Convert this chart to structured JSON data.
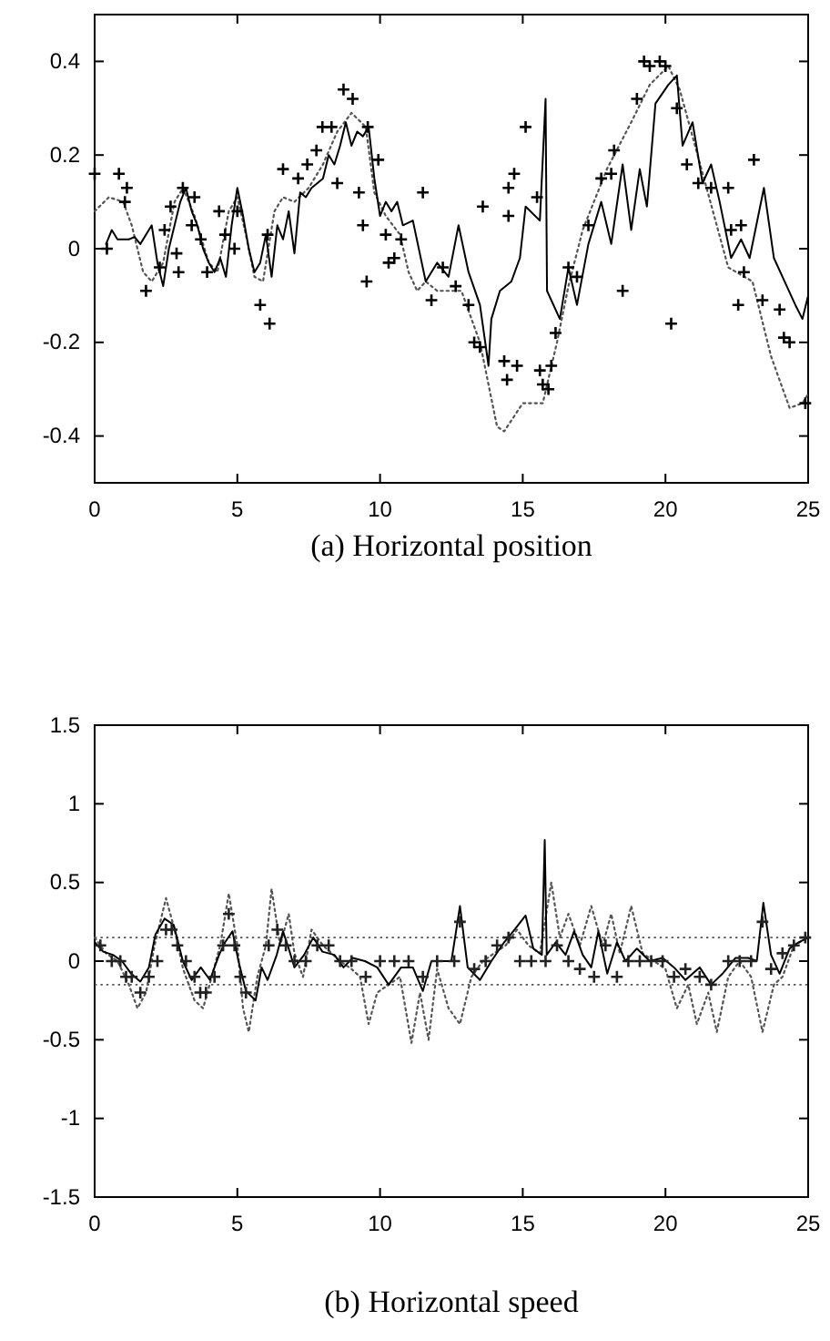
{
  "chart_data": [
    {
      "type": "line",
      "xlabel": "(a) Horizontal position",
      "xlim": [
        0,
        25
      ],
      "xticks": [
        0,
        5,
        10,
        15,
        20,
        25
      ],
      "ylim": [
        -0.5,
        0.5
      ],
      "yticks": [
        {
          "value": -0.5,
          "label": null
        },
        -0.4,
        -0.2,
        0,
        0.2,
        0.4,
        {
          "value": 0.5,
          "label": null
        }
      ],
      "grid": false,
      "series": [
        {
          "type": "line",
          "line_style": "dotted",
          "color": "#555555",
          "x": [
            0,
            0.5,
            1.0,
            1.3,
            1.7,
            2.0,
            2.4,
            2.8,
            3.1,
            3.5,
            4.0,
            4.3,
            4.7,
            5.0,
            5.3,
            5.6,
            5.9,
            6.3,
            6.6,
            7.0,
            7.5,
            8.0,
            8.5,
            9.0,
            9.5,
            9.8,
            10.2,
            10.7,
            11.0,
            11.3,
            11.6,
            12.0,
            12.85,
            13.5,
            14.1,
            14.35,
            15.0,
            15.7,
            16.2,
            16.6,
            17.1,
            17.95,
            18.8,
            19.45,
            20.1,
            20.5,
            21.35,
            22.2,
            23.05,
            23.7,
            24.35,
            24.8,
            25
          ],
          "values": [
            0.08,
            0.11,
            0.1,
            0.05,
            -0.05,
            -0.07,
            -0.03,
            0.1,
            0.13,
            0.07,
            -0.03,
            -0.05,
            0.08,
            0.11,
            0.03,
            -0.06,
            -0.07,
            0.08,
            0.11,
            0.1,
            0.13,
            0.18,
            0.25,
            0.29,
            0.26,
            0.12,
            0.07,
            0.03,
            -0.05,
            -0.09,
            -0.07,
            -0.09,
            -0.09,
            -0.2,
            -0.38,
            -0.39,
            -0.33,
            -0.33,
            -0.2,
            -0.08,
            0.04,
            0.17,
            0.27,
            0.35,
            0.39,
            0.34,
            0.15,
            -0.04,
            -0.07,
            -0.23,
            -0.34,
            -0.33,
            -0.31
          ]
        },
        {
          "type": "line",
          "line_style": "solid",
          "color": "#000000",
          "x": [
            0.4,
            0.6,
            0.8,
            1.2,
            1.4,
            1.6,
            2.0,
            2.2,
            2.4,
            2.6,
            2.8,
            3.0,
            3.2,
            3.4,
            3.6,
            3.8,
            4.0,
            4.2,
            4.4,
            4.6,
            4.8,
            5.0,
            5.2,
            5.4,
            5.6,
            5.8,
            6.0,
            6.2,
            6.4,
            6.6,
            6.8,
            7.0,
            7.2,
            7.4,
            7.6,
            8.0,
            8.2,
            8.4,
            8.6,
            8.8,
            9.0,
            9.2,
            9.4,
            9.6,
            9.8,
            10.0,
            10.2,
            10.4,
            10.6,
            10.8,
            11.15,
            11.6,
            12.0,
            12.4,
            12.75,
            13.1,
            13.5,
            13.8,
            13.9,
            14.2,
            14.6,
            14.9,
            15.1,
            15.6,
            15.8,
            15.85,
            16.3,
            16.6,
            16.9,
            17.3,
            17.75,
            18.1,
            18.5,
            18.8,
            19.1,
            19.35,
            19.65,
            20.1,
            20.4,
            20.6,
            20.95,
            21.3,
            21.6,
            21.9,
            22.3,
            22.65,
            22.95,
            23.45,
            23.8,
            24.25,
            24.55,
            24.8,
            25.0
          ],
          "values": [
            0.01,
            0.04,
            0.02,
            0.02,
            0.025,
            0.01,
            0.05,
            -0.03,
            -0.08,
            0.0,
            0.05,
            0.1,
            0.13,
            0.08,
            0.05,
            0.0,
            -0.03,
            -0.05,
            -0.02,
            -0.06,
            0.05,
            0.13,
            0.07,
            0.0,
            -0.05,
            -0.03,
            0.03,
            -0.06,
            0.05,
            0.02,
            0.08,
            -0.01,
            0.12,
            0.11,
            0.13,
            0.15,
            0.2,
            0.18,
            0.22,
            0.27,
            0.22,
            0.25,
            0.24,
            0.26,
            0.15,
            0.07,
            0.1,
            0.08,
            0.1,
            0.05,
            0.06,
            -0.07,
            -0.03,
            -0.06,
            0.05,
            -0.05,
            -0.12,
            -0.25,
            -0.15,
            -0.09,
            -0.07,
            -0.02,
            0.09,
            0.06,
            0.32,
            -0.09,
            -0.15,
            -0.04,
            -0.12,
            0.01,
            0.1,
            0.01,
            0.18,
            0.04,
            0.17,
            0.09,
            0.31,
            0.35,
            0.37,
            0.22,
            0.27,
            0.14,
            0.18,
            0.1,
            -0.02,
            0.02,
            -0.02,
            0.13,
            -0.02,
            -0.08,
            -0.12,
            -0.15,
            -0.1
          ]
        },
        {
          "type": "scatter",
          "marker": "cross",
          "color": "#000000",
          "x": [
            0,
            0.43,
            0.85,
            1.06,
            1.13,
            1.8,
            2.28,
            2.45,
            2.66,
            2.87,
            2.94,
            3.09,
            3.5,
            3.4,
            3.72,
            3.94,
            4.36,
            4.57,
            4.9,
            5.0,
            5.8,
            6.13,
            6.06,
            6.6,
            7.13,
            7.45,
            7.77,
            7.98,
            8.3,
            8.5,
            8.72,
            9.04,
            9.26,
            9.4,
            9.57,
            9.53,
            9.94,
            10.2,
            10.3,
            10.5,
            10.74,
            11.5,
            11.8,
            12.2,
            12.65,
            13.1,
            13.3,
            13.5,
            13.6,
            14.35,
            14.45,
            14.5,
            14.5,
            14.7,
            14.8,
            15.1,
            15.5,
            15.6,
            15.7,
            15.9,
            16.0,
            16.15,
            16.6,
            16.9,
            17.3,
            17.75,
            18.1,
            18.2,
            18.5,
            19.0,
            19.25,
            19.45,
            19.8,
            20.0,
            20.2,
            20.4,
            20.75,
            21.15,
            21.6,
            22.2,
            22.3,
            22.65,
            22.55,
            22.75,
            23.1,
            23.4,
            24.0,
            24.15,
            24.35,
            24.9
          ],
          "values": [
            0.16,
            0.0,
            0.16,
            0.1,
            0.13,
            -0.09,
            -0.04,
            0.04,
            0.09,
            -0.01,
            -0.05,
            0.13,
            0.11,
            0.05,
            0.02,
            -0.05,
            0.08,
            0.03,
            0.0,
            0.08,
            -0.12,
            -0.16,
            0.03,
            0.17,
            0.15,
            0.18,
            0.21,
            0.26,
            0.26,
            0.14,
            0.34,
            0.32,
            0.12,
            0.05,
            0.26,
            -0.07,
            0.19,
            0.03,
            -0.03,
            -0.02,
            0.02,
            0.12,
            -0.11,
            -0.04,
            -0.08,
            -0.12,
            -0.2,
            -0.21,
            0.09,
            -0.24,
            -0.28,
            0.07,
            0.13,
            0.16,
            -0.25,
            0.26,
            0.11,
            -0.26,
            -0.29,
            -0.3,
            -0.25,
            -0.18,
            -0.04,
            -0.06,
            0.05,
            0.15,
            0.16,
            0.21,
            -0.09,
            0.32,
            0.4,
            0.39,
            0.4,
            0.39,
            -0.16,
            0.3,
            0.18,
            0.14,
            0.13,
            0.13,
            0.04,
            0.05,
            -0.12,
            -0.05,
            0.19,
            -0.11,
            -0.13,
            -0.19,
            -0.2,
            -0.33
          ]
        }
      ]
    },
    {
      "type": "line",
      "xlabel": "(b) Horizontal speed",
      "xlim": [
        0,
        25
      ],
      "xticks": [
        0,
        5,
        10,
        15,
        20,
        25
      ],
      "ylim": [
        -1.5,
        1.5
      ],
      "yticks": [
        -1.5,
        -1,
        -0.5,
        0,
        0.5,
        1,
        1.5
      ],
      "grid": false,
      "ref_lines": [
        {
          "axis": "y",
          "value": 0.15,
          "color": "#555555",
          "line_style": "dotted"
        },
        {
          "axis": "y",
          "value": -0.15,
          "color": "#555555",
          "line_style": "dotted"
        }
      ],
      "series": [
        {
          "type": "line",
          "line_style": "dotted",
          "color": "#555555",
          "x": [
            0,
            0.4,
            0.8,
            1.2,
            1.5,
            1.8,
            2.1,
            2.5,
            2.8,
            3.1,
            3.5,
            3.8,
            4.1,
            4.4,
            4.7,
            5.0,
            5.2,
            5.4,
            5.7,
            6.0,
            6.2,
            6.5,
            6.8,
            7.0,
            7.3,
            7.6,
            8.0,
            8.3,
            8.6,
            9.0,
            9.3,
            9.6,
            9.9,
            10.3,
            10.7,
            11.1,
            11.4,
            11.7,
            12.0,
            12.4,
            12.8,
            13.2,
            13.6,
            14.0,
            14.4,
            14.8,
            15.2,
            15.6,
            16.0,
            16.3,
            16.6,
            17.0,
            17.4,
            17.8,
            18.1,
            18.4,
            18.8,
            19.2,
            19.6,
            20.0,
            20.4,
            20.8,
            21.1,
            21.5,
            21.8,
            22.2,
            22.6,
            23.0,
            23.4,
            23.8,
            24.1,
            24.5,
            25
          ],
          "values": [
            0.15,
            0.05,
            0.0,
            -0.15,
            -0.3,
            -0.2,
            0.1,
            0.4,
            0.2,
            -0.05,
            -0.25,
            -0.3,
            -0.1,
            0.1,
            0.43,
            0.1,
            -0.3,
            -0.45,
            -0.1,
            0.1,
            0.46,
            0.1,
            0.3,
            0.05,
            -0.1,
            0.2,
            0.1,
            0.05,
            0.0,
            -0.05,
            -0.1,
            -0.4,
            -0.2,
            -0.15,
            -0.1,
            -0.52,
            -0.2,
            -0.5,
            -0.05,
            -0.3,
            -0.4,
            -0.1,
            0.0,
            0.05,
            0.1,
            0.2,
            0.1,
            0.05,
            0.5,
            0.15,
            0.3,
            0.1,
            0.35,
            0.1,
            0.3,
            0.05,
            0.35,
            0.05,
            0.0,
            -0.05,
            -0.3,
            -0.15,
            -0.4,
            -0.2,
            -0.45,
            -0.1,
            0.0,
            -0.1,
            -0.45,
            -0.15,
            -0.1,
            0.1,
            0.15
          ]
        },
        {
          "type": "line",
          "line_style": "solid",
          "color": "#000000",
          "x": [
            0,
            0.3,
            0.64,
            0.96,
            1.28,
            1.6,
            1.9,
            2.13,
            2.45,
            2.77,
            3.09,
            3.4,
            3.72,
            4.04,
            4.36,
            4.57,
            4.83,
            5.04,
            5.3,
            5.64,
            5.85,
            6.06,
            6.38,
            6.6,
            6.8,
            7.0,
            7.34,
            7.66,
            7.98,
            8.4,
            8.72,
            9.04,
            9.47,
            9.9,
            10.3,
            10.74,
            11.15,
            11.5,
            11.8,
            12.2,
            12.5,
            12.8,
            13.07,
            13.5,
            13.9,
            14.35,
            14.67,
            15.1,
            15.37,
            15.67,
            15.77,
            15.84,
            16.16,
            16.5,
            16.8,
            17.1,
            17.4,
            17.65,
            17.96,
            18.3,
            18.6,
            19.0,
            19.45,
            19.9,
            20.3,
            20.7,
            21.2,
            21.6,
            22.0,
            22.45,
            22.9,
            23.2,
            23.43,
            23.7,
            24.0,
            24.35,
            24.67,
            25
          ],
          "values": [
            0.12,
            0.06,
            0.04,
            0,
            -0.08,
            -0.13,
            -0.04,
            0.17,
            0.27,
            0.23,
            0,
            -0.12,
            -0.04,
            -0.12,
            0.04,
            0.12,
            0.19,
            0,
            -0.19,
            -0.25,
            -0.04,
            -0.12,
            0.04,
            0.19,
            0.08,
            -0.04,
            0.04,
            0.15,
            0.06,
            0.04,
            -0.04,
            0.02,
            0,
            -0.04,
            -0.15,
            -0.04,
            -0.04,
            -0.19,
            0,
            0,
            0,
            0.35,
            -0.04,
            -0.12,
            0,
            0.12,
            0.19,
            0.29,
            0.08,
            0.04,
            0.77,
            0.04,
            0.12,
            0.04,
            0.19,
            0.04,
            -0.04,
            0.19,
            -0.08,
            0.12,
            0,
            0.08,
            0,
            0.02,
            -0.04,
            -0.12,
            -0.04,
            -0.15,
            -0.08,
            0.02,
            0.02,
            0,
            0.37,
            0.04,
            -0.08,
            0.08,
            0.12,
            0.15
          ]
        },
        {
          "type": "scatter",
          "marker": "cross",
          "color": "#222222",
          "x": [
            0.2,
            0.6,
            0.9,
            1.1,
            1.3,
            1.6,
            1.9,
            2.2,
            2.5,
            2.7,
            2.9,
            3.2,
            3.5,
            3.7,
            3.9,
            4.2,
            4.5,
            4.7,
            4.9,
            5.1,
            5.3,
            6.1,
            6.4,
            6.7,
            7.0,
            7.4,
            7.8,
            8.2,
            8.6,
            9.0,
            9.5,
            10.0,
            10.5,
            11.0,
            11.5,
            12.0,
            12.6,
            12.8,
            13.3,
            13.7,
            14.1,
            14.5,
            14.9,
            15.3,
            15.8,
            16.2,
            16.6,
            17.0,
            17.5,
            17.9,
            18.3,
            18.7,
            19.1,
            19.5,
            19.9,
            20.3,
            20.7,
            21.2,
            21.6,
            22.2,
            22.6,
            23.0,
            23.4,
            23.7,
            24.1,
            24.5,
            24.9
          ],
          "values": [
            0.1,
            0.0,
            0.0,
            -0.1,
            -0.1,
            -0.2,
            -0.1,
            0.0,
            0.2,
            0.2,
            0.1,
            0.0,
            -0.1,
            -0.2,
            -0.2,
            -0.1,
            0.1,
            0.3,
            0.1,
            -0.1,
            -0.2,
            0.1,
            0.2,
            0.1,
            0.0,
            0.0,
            0.1,
            0.1,
            0.0,
            0.0,
            -0.1,
            0.0,
            0.0,
            0.0,
            -0.1,
            0.0,
            0.0,
            0.25,
            -0.05,
            0.0,
            0.1,
            0.15,
            0.0,
            0.0,
            0.0,
            0.1,
            0.0,
            -0.05,
            -0.1,
            0.1,
            -0.1,
            0.0,
            0.0,
            0.0,
            0.0,
            -0.1,
            -0.05,
            -0.1,
            -0.15,
            0.0,
            0.0,
            0.0,
            0.25,
            -0.05,
            0.05,
            0.1,
            0.15
          ]
        }
      ]
    }
  ]
}
